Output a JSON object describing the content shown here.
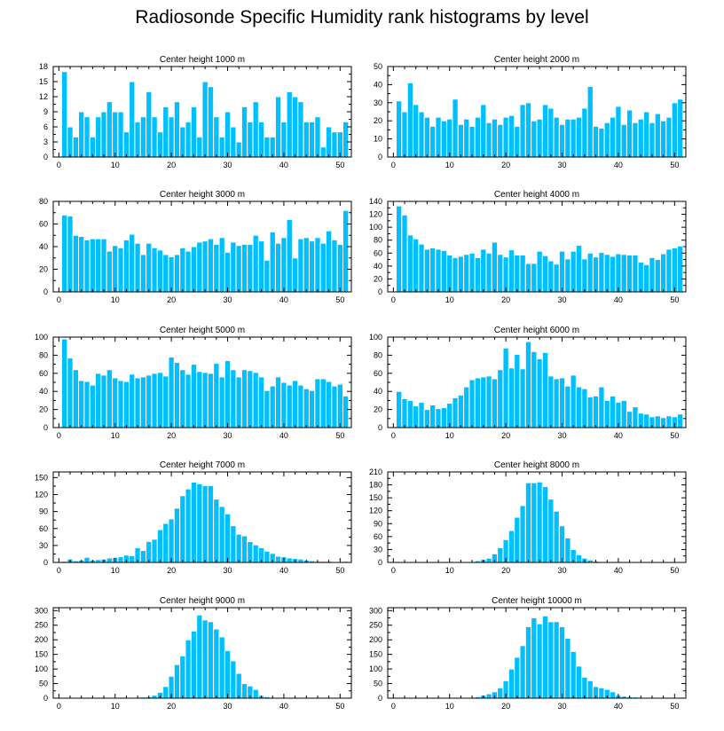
{
  "title": "Radiosonde Specific Humidity rank histograms by level",
  "colors": {
    "bar": "#00BFFF",
    "bar_edge": "#ffffff",
    "axis": "#000000"
  },
  "chart_data": [
    {
      "type": "bar",
      "title": "Center height 1000 m",
      "x": [
        0,
        1,
        2,
        3,
        4,
        5,
        6,
        7,
        8,
        9,
        10,
        11,
        12,
        13,
        14,
        15,
        16,
        17,
        18,
        19,
        20,
        21,
        22,
        23,
        24,
        25,
        26,
        27,
        28,
        29,
        30,
        31,
        32,
        33,
        34,
        35,
        36,
        37,
        38,
        39,
        40,
        41,
        42,
        43,
        44,
        45,
        46,
        47,
        48,
        49,
        50,
        51
      ],
      "values": [
        0,
        17,
        6,
        4,
        9,
        8,
        4,
        8,
        9,
        11,
        9,
        9,
        5,
        15,
        7,
        8,
        13,
        8,
        5,
        10,
        8,
        11,
        6,
        7,
        10,
        4,
        15,
        14,
        8,
        4,
        9,
        6,
        3,
        10,
        7,
        11,
        7,
        4,
        4,
        12,
        7,
        13,
        12,
        11,
        7,
        7,
        8,
        2,
        6,
        5,
        5,
        7
      ],
      "xlim": [
        -1,
        52
      ],
      "ylim": [
        0,
        18
      ],
      "xticks": [
        0,
        10,
        20,
        30,
        40,
        50
      ],
      "yticks": [
        0,
        3,
        6,
        9,
        12,
        15,
        18
      ]
    },
    {
      "type": "bar",
      "title": "Center height 2000 m",
      "x": [
        0,
        1,
        2,
        3,
        4,
        5,
        6,
        7,
        8,
        9,
        10,
        11,
        12,
        13,
        14,
        15,
        16,
        17,
        18,
        19,
        20,
        21,
        22,
        23,
        24,
        25,
        26,
        27,
        28,
        29,
        30,
        31,
        32,
        33,
        34,
        35,
        36,
        37,
        38,
        39,
        40,
        41,
        42,
        43,
        44,
        45,
        46,
        47,
        48,
        49,
        50,
        51
      ],
      "values": [
        0,
        31,
        25,
        41,
        29,
        25,
        22,
        17,
        22,
        20,
        21,
        32,
        18,
        21,
        17,
        22,
        29,
        19,
        21,
        18,
        22,
        23,
        17,
        29,
        30,
        20,
        21,
        29,
        27,
        22,
        18,
        21,
        21,
        22,
        27,
        39,
        17,
        16,
        19,
        22,
        28,
        18,
        26,
        19,
        21,
        25,
        19,
        24,
        20,
        22,
        30,
        32
      ],
      "xlim": [
        -1,
        52
      ],
      "ylim": [
        0,
        50
      ],
      "xticks": [
        0,
        10,
        20,
        30,
        40,
        50
      ],
      "yticks": [
        0,
        10,
        20,
        30,
        40,
        50
      ]
    },
    {
      "type": "bar",
      "title": "Center height 3000 m",
      "x": [
        0,
        1,
        2,
        3,
        4,
        5,
        6,
        7,
        8,
        9,
        10,
        11,
        12,
        13,
        14,
        15,
        16,
        17,
        18,
        19,
        20,
        21,
        22,
        23,
        24,
        25,
        26,
        27,
        28,
        29,
        30,
        31,
        32,
        33,
        34,
        35,
        36,
        37,
        38,
        39,
        40,
        41,
        42,
        43,
        44,
        45,
        46,
        47,
        48,
        49,
        50,
        51
      ],
      "values": [
        0,
        68,
        67,
        50,
        49,
        46,
        47,
        47,
        47,
        36,
        41,
        39,
        46,
        51,
        43,
        33,
        43,
        39,
        37,
        33,
        31,
        33,
        39,
        36,
        40,
        44,
        45,
        47,
        42,
        48,
        35,
        44,
        41,
        42,
        42,
        50,
        45,
        28,
        53,
        43,
        48,
        64,
        30,
        47,
        48,
        45,
        48,
        43,
        54,
        46,
        42,
        72
      ],
      "xlim": [
        -1,
        52
      ],
      "ylim": [
        0,
        80
      ],
      "xticks": [
        0,
        10,
        20,
        30,
        40,
        50
      ],
      "yticks": [
        0,
        20,
        40,
        60,
        80
      ]
    },
    {
      "type": "bar",
      "title": "Center height 4000 m",
      "x": [
        0,
        1,
        2,
        3,
        4,
        5,
        6,
        7,
        8,
        9,
        10,
        11,
        12,
        13,
        14,
        15,
        16,
        17,
        18,
        19,
        20,
        21,
        22,
        23,
        24,
        25,
        26,
        27,
        28,
        29,
        30,
        31,
        32,
        33,
        34,
        35,
        36,
        37,
        38,
        39,
        40,
        41,
        42,
        43,
        44,
        45,
        46,
        47,
        48,
        49,
        50,
        51
      ],
      "values": [
        0,
        133,
        119,
        88,
        82,
        74,
        66,
        68,
        66,
        64,
        57,
        53,
        55,
        58,
        60,
        53,
        66,
        60,
        77,
        58,
        54,
        65,
        57,
        57,
        44,
        44,
        63,
        56,
        48,
        43,
        63,
        51,
        63,
        72,
        51,
        60,
        54,
        61,
        58,
        55,
        59,
        58,
        57,
        57,
        46,
        42,
        53,
        50,
        59,
        66,
        68,
        71
      ],
      "xlim": [
        -1,
        52
      ],
      "ylim": [
        0,
        140
      ],
      "xticks": [
        0,
        10,
        20,
        30,
        40,
        50
      ],
      "yticks": [
        0,
        20,
        40,
        60,
        80,
        100,
        120,
        140
      ]
    },
    {
      "type": "bar",
      "title": "Center height 5000 m",
      "x": [
        0,
        1,
        2,
        3,
        4,
        5,
        6,
        7,
        8,
        9,
        10,
        11,
        12,
        13,
        14,
        15,
        16,
        17,
        18,
        19,
        20,
        21,
        22,
        23,
        24,
        25,
        26,
        27,
        28,
        29,
        30,
        31,
        32,
        33,
        34,
        35,
        36,
        37,
        38,
        39,
        40,
        41,
        42,
        43,
        44,
        45,
        46,
        47,
        48,
        49,
        50,
        51
      ],
      "values": [
        0,
        98,
        77,
        64,
        52,
        51,
        47,
        60,
        58,
        64,
        55,
        52,
        51,
        59,
        55,
        56,
        58,
        60,
        61,
        57,
        78,
        72,
        64,
        59,
        70,
        62,
        61,
        60,
        71,
        56,
        74,
        64,
        56,
        64,
        63,
        61,
        56,
        41,
        46,
        56,
        50,
        47,
        52,
        47,
        43,
        41,
        54,
        54,
        51,
        46,
        48,
        35
      ],
      "xlim": [
        -1,
        52
      ],
      "ylim": [
        0,
        100
      ],
      "xticks": [
        0,
        10,
        20,
        30,
        40,
        50
      ],
      "yticks": [
        0,
        20,
        40,
        60,
        80,
        100
      ]
    },
    {
      "type": "bar",
      "title": "Center height 6000 m",
      "x": [
        0,
        1,
        2,
        3,
        4,
        5,
        6,
        7,
        8,
        9,
        10,
        11,
        12,
        13,
        14,
        15,
        16,
        17,
        18,
        19,
        20,
        21,
        22,
        23,
        24,
        25,
        26,
        27,
        28,
        29,
        30,
        31,
        32,
        33,
        34,
        35,
        36,
        37,
        38,
        39,
        40,
        41,
        42,
        43,
        44,
        45,
        46,
        47,
        48,
        49,
        50,
        51
      ],
      "values": [
        0,
        40,
        32,
        30,
        24,
        28,
        20,
        25,
        21,
        22,
        27,
        33,
        36,
        45,
        53,
        55,
        56,
        57,
        54,
        64,
        88,
        66,
        81,
        65,
        95,
        84,
        76,
        83,
        57,
        54,
        55,
        46,
        58,
        45,
        43,
        34,
        35,
        45,
        30,
        35,
        28,
        30,
        18,
        23,
        16,
        15,
        12,
        13,
        11,
        13,
        12,
        15
      ],
      "xlim": [
        -1,
        52
      ],
      "ylim": [
        0,
        100
      ],
      "xticks": [
        0,
        10,
        20,
        30,
        40,
        50
      ],
      "yticks": [
        0,
        20,
        40,
        60,
        80,
        100
      ]
    },
    {
      "type": "bar",
      "title": "Center height 7000 m",
      "x": [
        0,
        1,
        2,
        3,
        4,
        5,
        6,
        7,
        8,
        9,
        10,
        11,
        12,
        13,
        14,
        15,
        16,
        17,
        18,
        19,
        20,
        21,
        22,
        23,
        24,
        25,
        26,
        27,
        28,
        29,
        30,
        31,
        32,
        33,
        34,
        35,
        36,
        37,
        38,
        39,
        40,
        41,
        42,
        43,
        44,
        45,
        46,
        47,
        48,
        49,
        50,
        51
      ],
      "values": [
        0,
        2,
        6,
        3,
        4,
        9,
        4,
        5,
        6,
        8,
        9,
        10,
        13,
        12,
        26,
        21,
        37,
        41,
        58,
        69,
        77,
        96,
        118,
        130,
        142,
        139,
        136,
        136,
        112,
        99,
        86,
        65,
        50,
        47,
        37,
        31,
        26,
        20,
        16,
        11,
        10,
        8,
        7,
        6,
        4,
        3,
        2,
        2,
        2,
        1,
        1,
        2
      ],
      "xlim": [
        -1,
        52
      ],
      "ylim": [
        0,
        160
      ],
      "xticks": [
        0,
        10,
        20,
        30,
        40,
        50
      ],
      "yticks": [
        0,
        30,
        60,
        90,
        120,
        150
      ]
    },
    {
      "type": "bar",
      "title": "Center height 8000 m",
      "x": [
        0,
        1,
        2,
        3,
        4,
        5,
        6,
        7,
        8,
        9,
        10,
        11,
        12,
        13,
        14,
        15,
        16,
        17,
        18,
        19,
        20,
        21,
        22,
        23,
        24,
        25,
        26,
        27,
        28,
        29,
        30,
        31,
        32,
        33,
        34,
        35,
        36,
        37,
        38,
        39,
        40,
        41,
        42,
        43,
        44,
        45,
        46,
        47,
        48,
        49,
        50,
        51
      ],
      "values": [
        0,
        0,
        1,
        0,
        0,
        0,
        0,
        0,
        0,
        0,
        0,
        0,
        1,
        1,
        1,
        4,
        7,
        10,
        20,
        34,
        53,
        74,
        105,
        132,
        185,
        185,
        187,
        176,
        147,
        119,
        85,
        57,
        30,
        18,
        10,
        6,
        3,
        2,
        1,
        2,
        1,
        0,
        0,
        0,
        0,
        0,
        0,
        0,
        0,
        0,
        0,
        0
      ],
      "xlim": [
        -1,
        52
      ],
      "ylim": [
        0,
        210
      ],
      "xticks": [
        0,
        10,
        20,
        30,
        40,
        50
      ],
      "yticks": [
        0,
        30,
        60,
        90,
        120,
        150,
        180,
        210
      ]
    },
    {
      "type": "bar",
      "title": "Center height 9000 m",
      "x": [
        0,
        1,
        2,
        3,
        4,
        5,
        6,
        7,
        8,
        9,
        10,
        11,
        12,
        13,
        14,
        15,
        16,
        17,
        18,
        19,
        20,
        21,
        22,
        23,
        24,
        25,
        26,
        27,
        28,
        29,
        30,
        31,
        32,
        33,
        34,
        35,
        36,
        37,
        38,
        39,
        40,
        41,
        42,
        43,
        44,
        45,
        46,
        47,
        48,
        49,
        50,
        51
      ],
      "values": [
        0,
        0,
        0,
        0,
        0,
        0,
        0,
        0,
        0,
        0,
        0,
        1,
        1,
        1,
        3,
        4,
        5,
        10,
        20,
        40,
        75,
        115,
        145,
        200,
        230,
        285,
        268,
        262,
        237,
        210,
        163,
        128,
        85,
        50,
        42,
        30,
        9,
        5,
        2,
        1,
        1,
        0,
        0,
        0,
        0,
        0,
        0,
        0,
        0,
        0,
        0,
        0
      ],
      "xlim": [
        -1,
        52
      ],
      "ylim": [
        0,
        310
      ],
      "xticks": [
        0,
        10,
        20,
        30,
        40,
        50
      ],
      "yticks": [
        0,
        50,
        100,
        150,
        200,
        250,
        300
      ]
    },
    {
      "type": "bar",
      "title": "Center height 10000 m",
      "x": [
        0,
        1,
        2,
        3,
        4,
        5,
        6,
        7,
        8,
        9,
        10,
        11,
        12,
        13,
        14,
        15,
        16,
        17,
        18,
        19,
        20,
        21,
        22,
        23,
        24,
        25,
        26,
        27,
        28,
        29,
        30,
        31,
        32,
        33,
        34,
        35,
        36,
        37,
        38,
        39,
        40,
        41,
        42,
        43,
        44,
        45,
        46,
        47,
        48,
        49,
        50,
        51
      ],
      "values": [
        0,
        0,
        0,
        0,
        0,
        0,
        0,
        0,
        0,
        0,
        0,
        0,
        0,
        1,
        2,
        5,
        10,
        15,
        22,
        35,
        60,
        100,
        140,
        180,
        245,
        275,
        255,
        282,
        262,
        262,
        245,
        205,
        160,
        110,
        72,
        60,
        40,
        35,
        30,
        22,
        10,
        7,
        5,
        4,
        3,
        2,
        1,
        1,
        1,
        1,
        1,
        0
      ],
      "xlim": [
        -1,
        52
      ],
      "ylim": [
        0,
        310
      ],
      "xticks": [
        0,
        10,
        20,
        30,
        40,
        50
      ],
      "yticks": [
        0,
        50,
        100,
        150,
        200,
        250,
        300
      ]
    }
  ]
}
